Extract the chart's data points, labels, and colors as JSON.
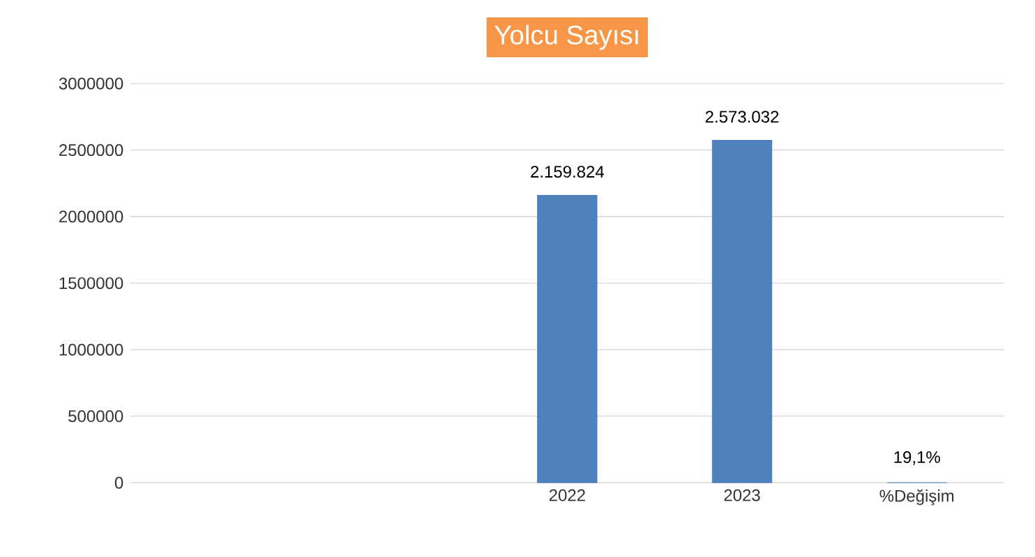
{
  "chart_data": {
    "type": "bar",
    "title": "Yolcu Sayısı",
    "categories": [
      null,
      null,
      "2022",
      "2023",
      "%Değişim"
    ],
    "values": [
      null,
      null,
      2159824,
      2573032,
      19.1
    ],
    "value_labels": [
      null,
      null,
      "2.159.824",
      "2.573.032",
      "19,1%"
    ],
    "color": "#4f81bd",
    "ylim": [
      0,
      3000000
    ],
    "yticks": [
      0,
      500000,
      1000000,
      1500000,
      2000000,
      2500000,
      3000000
    ],
    "grid": "y"
  }
}
